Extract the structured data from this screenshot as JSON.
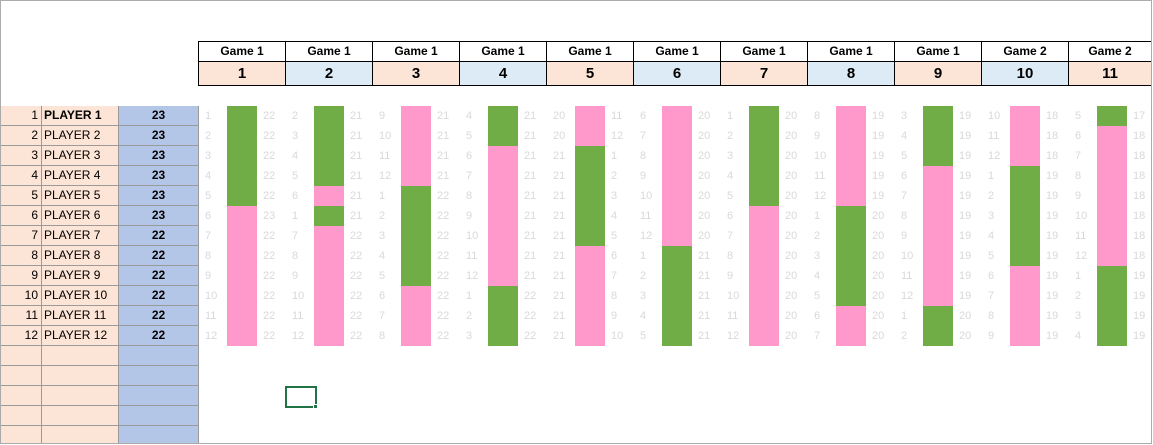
{
  "players": [
    {
      "rank": "1",
      "name": "PLAYER 1",
      "score": "23"
    },
    {
      "rank": "2",
      "name": "PLAYER 2",
      "score": "23"
    },
    {
      "rank": "3",
      "name": "PLAYER 3",
      "score": "23"
    },
    {
      "rank": "4",
      "name": "PLAYER 4",
      "score": "23"
    },
    {
      "rank": "5",
      "name": "PLAYER 5",
      "score": "23"
    },
    {
      "rank": "6",
      "name": "PLAYER 6",
      "score": "23"
    },
    {
      "rank": "7",
      "name": "PLAYER 7",
      "score": "22"
    },
    {
      "rank": "8",
      "name": "PLAYER 8",
      "score": "22"
    },
    {
      "rank": "9",
      "name": "PLAYER 9",
      "score": "22"
    },
    {
      "rank": "10",
      "name": "PLAYER 10",
      "score": "22"
    },
    {
      "rank": "11",
      "name": "PLAYER 11",
      "score": "22"
    },
    {
      "rank": "12",
      "name": "PLAYER 12",
      "score": "22"
    }
  ],
  "empty_rows": 5,
  "colors": {
    "green": "#70ad47",
    "pink": "#ff99cc",
    "header_peach": "#fce4d6",
    "header_blue": "#ddebf7",
    "score_blue": "#b4c6e7"
  },
  "games": [
    {
      "label": "Game 1",
      "number": "1",
      "seeds": [
        "1",
        "2",
        "3",
        "4",
        "5",
        "6",
        "7",
        "8",
        "9",
        "10",
        "11",
        "12"
      ],
      "totals": [
        "22",
        "22",
        "22",
        "22",
        "22",
        "23",
        "22",
        "22",
        "22",
        "22",
        "22",
        "22"
      ],
      "blocks": [
        {
          "color": "green",
          "rows": 5
        },
        {
          "color": "pink",
          "rows": 7
        }
      ]
    },
    {
      "label": "Game 1",
      "number": "2",
      "seeds": [
        "2",
        "3",
        "4",
        "5",
        "6",
        "1",
        "7",
        "8",
        "9",
        "10",
        "11",
        "12"
      ],
      "totals": [
        "21",
        "21",
        "21",
        "21",
        "21",
        "21",
        "22",
        "22",
        "22",
        "22",
        "22",
        "22"
      ],
      "blocks": [
        {
          "color": "green",
          "rows": 4
        },
        {
          "color": "pink",
          "rows": 1
        },
        {
          "color": "green",
          "rows": 1
        },
        {
          "color": "pink",
          "rows": 6
        }
      ]
    },
    {
      "label": "Game 1",
      "number": "3",
      "seeds": [
        "9",
        "10",
        "11",
        "12",
        "1",
        "2",
        "3",
        "4",
        "5",
        "6",
        "7",
        "8"
      ],
      "totals": [
        "21",
        "21",
        "21",
        "21",
        "22",
        "22",
        "22",
        "22",
        "22",
        "22",
        "22",
        "22"
      ],
      "blocks": [
        {
          "color": "pink",
          "rows": 4
        },
        {
          "color": "green",
          "rows": 5
        },
        {
          "color": "pink",
          "rows": 3
        }
      ]
    },
    {
      "label": "Game 1",
      "number": "4",
      "seeds": [
        "4",
        "5",
        "6",
        "7",
        "8",
        "9",
        "10",
        "11",
        "12",
        "1",
        "2",
        "3"
      ],
      "totals": [
        "21",
        "21",
        "21",
        "21",
        "21",
        "21",
        "21",
        "21",
        "21",
        "22",
        "22",
        "22"
      ],
      "blocks": [
        {
          "color": "green",
          "rows": 2
        },
        {
          "color": "pink",
          "rows": 7
        },
        {
          "color": "green",
          "rows": 3
        }
      ]
    },
    {
      "label": "Game 1",
      "number": "5",
      "seeds": [
        "20",
        "20",
        "21",
        "21",
        "21",
        "21",
        "21",
        "21",
        "21",
        "21",
        "21",
        "21"
      ],
      "totals": [
        "11",
        "12",
        "1",
        "2",
        "3",
        "4",
        "5",
        "6",
        "7",
        "8",
        "9",
        "10"
      ],
      "blocks": [
        {
          "color": "pink",
          "rows": 2
        },
        {
          "color": "green",
          "rows": 5
        },
        {
          "color": "pink",
          "rows": 5
        }
      ]
    },
    {
      "label": "Game 1",
      "number": "6",
      "seeds": [
        "6",
        "7",
        "8",
        "9",
        "10",
        "11",
        "12",
        "1",
        "2",
        "3",
        "4",
        "5"
      ],
      "totals": [
        "20",
        "20",
        "20",
        "20",
        "20",
        "20",
        "20",
        "21",
        "21",
        "21",
        "21",
        "21"
      ],
      "blocks": [
        {
          "color": "pink",
          "rows": 7
        },
        {
          "color": "green",
          "rows": 5
        }
      ]
    },
    {
      "label": "Game 1",
      "number": "7",
      "seeds": [
        "1",
        "2",
        "3",
        "4",
        "5",
        "6",
        "7",
        "8",
        "9",
        "10",
        "11",
        "12"
      ],
      "totals": [
        "20",
        "20",
        "20",
        "20",
        "20",
        "20",
        "20",
        "20",
        "20",
        "20",
        "20",
        "20"
      ],
      "blocks": [
        {
          "color": "green",
          "rows": 5
        },
        {
          "color": "pink",
          "rows": 7
        }
      ]
    },
    {
      "label": "Game 1",
      "number": "8",
      "seeds": [
        "8",
        "9",
        "10",
        "11",
        "12",
        "1",
        "2",
        "3",
        "4",
        "5",
        "6",
        "7"
      ],
      "totals": [
        "19",
        "19",
        "19",
        "19",
        "19",
        "20",
        "20",
        "20",
        "20",
        "20",
        "20",
        "20"
      ],
      "blocks": [
        {
          "color": "pink",
          "rows": 5
        },
        {
          "color": "green",
          "rows": 5
        },
        {
          "color": "pink",
          "rows": 2
        }
      ]
    },
    {
      "label": "Game 1",
      "number": "9",
      "seeds": [
        "3",
        "4",
        "5",
        "6",
        "7",
        "8",
        "9",
        "10",
        "11",
        "12",
        "1",
        "2"
      ],
      "totals": [
        "19",
        "19",
        "19",
        "19",
        "19",
        "19",
        "19",
        "19",
        "19",
        "19",
        "20",
        "20"
      ],
      "blocks": [
        {
          "color": "green",
          "rows": 3
        },
        {
          "color": "pink",
          "rows": 7
        },
        {
          "color": "green",
          "rows": 2
        }
      ]
    },
    {
      "label": "Game 2",
      "number": "10",
      "seeds": [
        "10",
        "11",
        "12",
        "1",
        "2",
        "3",
        "4",
        "5",
        "6",
        "7",
        "8",
        "9"
      ],
      "totals": [
        "18",
        "18",
        "18",
        "19",
        "19",
        "19",
        "19",
        "19",
        "19",
        "19",
        "19",
        "19"
      ],
      "blocks": [
        {
          "color": "pink",
          "rows": 3
        },
        {
          "color": "green",
          "rows": 5
        },
        {
          "color": "pink",
          "rows": 4
        }
      ]
    },
    {
      "label": "Game 2",
      "number": "11",
      "seeds": [
        "5",
        "6",
        "7",
        "8",
        "9",
        "10",
        "11",
        "12",
        "1",
        "2",
        "3",
        "4"
      ],
      "totals": [
        "17",
        "18",
        "18",
        "18",
        "18",
        "18",
        "18",
        "18",
        "19",
        "19",
        "19",
        "19"
      ],
      "blocks": [
        {
          "color": "green",
          "rows": 1
        },
        {
          "color": "pink",
          "rows": 7
        },
        {
          "color": "green",
          "rows": 4
        }
      ]
    }
  ]
}
